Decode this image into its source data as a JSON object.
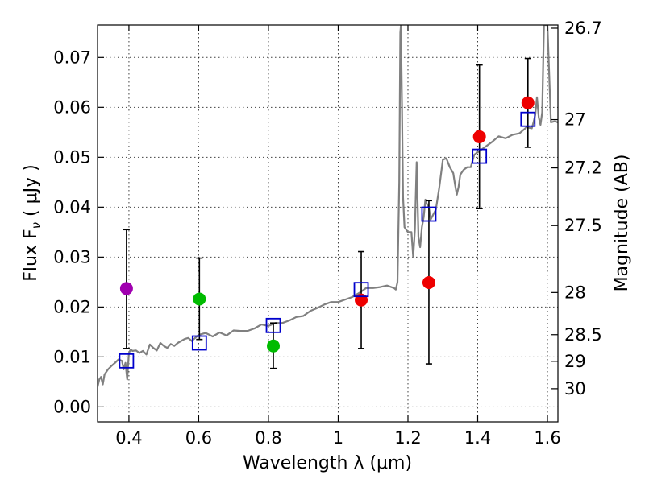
{
  "chart_data": {
    "type": "scatter",
    "xlabel": "Wavelength  λ (μm)",
    "ylabel": "Flux  F",
    "ylabel_sub": "ν",
    "ylabel_unit": "  ( μJy )",
    "y2label": "Magnitude (AB)",
    "xlim": [
      0.31,
      1.63
    ],
    "ylim": [
      -0.003,
      0.0765
    ],
    "x_ticks": [
      0.4,
      0.6,
      0.8,
      1.0,
      1.2,
      1.4,
      1.6
    ],
    "x_tick_labels": [
      "0.4",
      "0.6",
      "0.8",
      "1",
      "1.2",
      "1.4",
      "1.6"
    ],
    "y_ticks": [
      0.0,
      0.01,
      0.02,
      0.03,
      0.04,
      0.05,
      0.06,
      0.07
    ],
    "y_tick_labels": [
      "0.00",
      "0.01",
      "0.02",
      "0.03",
      "0.04",
      "0.05",
      "0.06",
      "0.07"
    ],
    "mag_ticks": [
      26.7,
      27,
      27.2,
      27.5,
      28,
      28.5,
      29,
      30
    ],
    "mag_tick_labels": [
      "26.7",
      "27",
      "27.2",
      "27.5",
      "28",
      "28.5",
      "29",
      "30"
    ],
    "grid": true,
    "colors": {
      "spectrum": "#808080",
      "model": "#0000cc",
      "errorbar": "#000000",
      "purple": "#a000b0",
      "green": "#00bb00",
      "red": "#ee0000"
    },
    "observed_points": [
      {
        "x": 0.393,
        "y": 0.0237,
        "yerr_low": 0.0117,
        "yerr_high": 0.0355,
        "color": "purple"
      },
      {
        "x": 0.602,
        "y": 0.0216,
        "yerr_low": 0.0135,
        "yerr_high": 0.0298,
        "color": "green"
      },
      {
        "x": 0.814,
        "y": 0.0122,
        "yerr_low": 0.0077,
        "yerr_high": 0.0168,
        "color": "green"
      },
      {
        "x": 1.066,
        "y": 0.0214,
        "yerr_low": 0.0117,
        "yerr_high": 0.0311,
        "color": "red"
      },
      {
        "x": 1.26,
        "y": 0.0249,
        "yerr_low": 0.0086,
        "yerr_high": 0.0413,
        "color": "red"
      },
      {
        "x": 1.405,
        "y": 0.0541,
        "yerr_low": 0.0397,
        "yerr_high": 0.0685,
        "color": "red"
      },
      {
        "x": 1.544,
        "y": 0.0609,
        "yerr_low": 0.052,
        "yerr_high": 0.0698,
        "color": "red"
      }
    ],
    "model_points": [
      {
        "x": 0.393,
        "y": 0.0092
      },
      {
        "x": 0.602,
        "y": 0.0128
      },
      {
        "x": 0.814,
        "y": 0.0163
      },
      {
        "x": 1.066,
        "y": 0.0235
      },
      {
        "x": 1.26,
        "y": 0.0386
      },
      {
        "x": 1.405,
        "y": 0.0502
      },
      {
        "x": 1.544,
        "y": 0.0576
      }
    ],
    "spectrum": {
      "x": [
        0.31,
        0.315,
        0.32,
        0.325,
        0.33,
        0.34,
        0.35,
        0.36,
        0.37,
        0.38,
        0.385,
        0.39,
        0.395,
        0.4,
        0.405,
        0.41,
        0.42,
        0.43,
        0.44,
        0.45,
        0.46,
        0.47,
        0.48,
        0.49,
        0.5,
        0.51,
        0.52,
        0.53,
        0.54,
        0.55,
        0.56,
        0.57,
        0.58,
        0.6,
        0.62,
        0.64,
        0.66,
        0.68,
        0.7,
        0.72,
        0.74,
        0.76,
        0.78,
        0.8,
        0.82,
        0.84,
        0.86,
        0.88,
        0.9,
        0.92,
        0.94,
        0.96,
        0.98,
        1.0,
        1.02,
        1.04,
        1.06,
        1.08,
        1.1,
        1.12,
        1.14,
        1.16,
        1.165,
        1.17,
        1.175,
        1.178,
        1.18,
        1.183,
        1.186,
        1.19,
        1.2,
        1.21,
        1.215,
        1.22,
        1.225,
        1.23,
        1.235,
        1.24,
        1.245,
        1.25,
        1.255,
        1.26,
        1.265,
        1.27,
        1.28,
        1.29,
        1.3,
        1.31,
        1.32,
        1.33,
        1.335,
        1.34,
        1.345,
        1.35,
        1.355,
        1.36,
        1.37,
        1.38,
        1.39,
        1.4,
        1.42,
        1.44,
        1.46,
        1.48,
        1.5,
        1.52,
        1.54,
        1.555,
        1.56,
        1.565,
        1.57,
        1.575,
        1.58,
        1.585,
        1.59,
        1.6,
        1.61,
        1.62,
        1.63
      ],
      "y": [
        0.004,
        0.0055,
        0.006,
        0.0045,
        0.0065,
        0.0075,
        0.0082,
        0.0088,
        0.0095,
        0.0092,
        0.0075,
        0.0088,
        0.0055,
        0.0108,
        0.0115,
        0.0112,
        0.0113,
        0.0108,
        0.0112,
        0.0105,
        0.0125,
        0.0118,
        0.0113,
        0.0128,
        0.0122,
        0.0118,
        0.0126,
        0.0122,
        0.0128,
        0.0132,
        0.0136,
        0.0138,
        0.0132,
        0.0144,
        0.0148,
        0.0141,
        0.0149,
        0.0143,
        0.0153,
        0.0152,
        0.0152,
        0.0157,
        0.0165,
        0.0162,
        0.0168,
        0.0168,
        0.0173,
        0.018,
        0.0182,
        0.0192,
        0.0198,
        0.0205,
        0.021,
        0.021,
        0.0215,
        0.022,
        0.0228,
        0.0238,
        0.0238,
        0.024,
        0.0243,
        0.0238,
        0.0235,
        0.025,
        0.045,
        0.075,
        0.0765,
        0.06,
        0.042,
        0.036,
        0.035,
        0.035,
        0.03,
        0.0355,
        0.049,
        0.034,
        0.032,
        0.036,
        0.038,
        0.0415,
        0.0405,
        0.04,
        0.0375,
        0.0382,
        0.0395,
        0.044,
        0.0495,
        0.0498,
        0.048,
        0.0468,
        0.0445,
        0.0425,
        0.044,
        0.0465,
        0.047,
        0.0475,
        0.048,
        0.048,
        0.0505,
        0.051,
        0.052,
        0.053,
        0.0542,
        0.0538,
        0.0545,
        0.0548,
        0.056,
        0.0558,
        0.057,
        0.0585,
        0.062,
        0.058,
        0.0565,
        0.059,
        0.0765,
        0.0765,
        0.057,
        0.0572,
        0.057
      ]
    }
  }
}
